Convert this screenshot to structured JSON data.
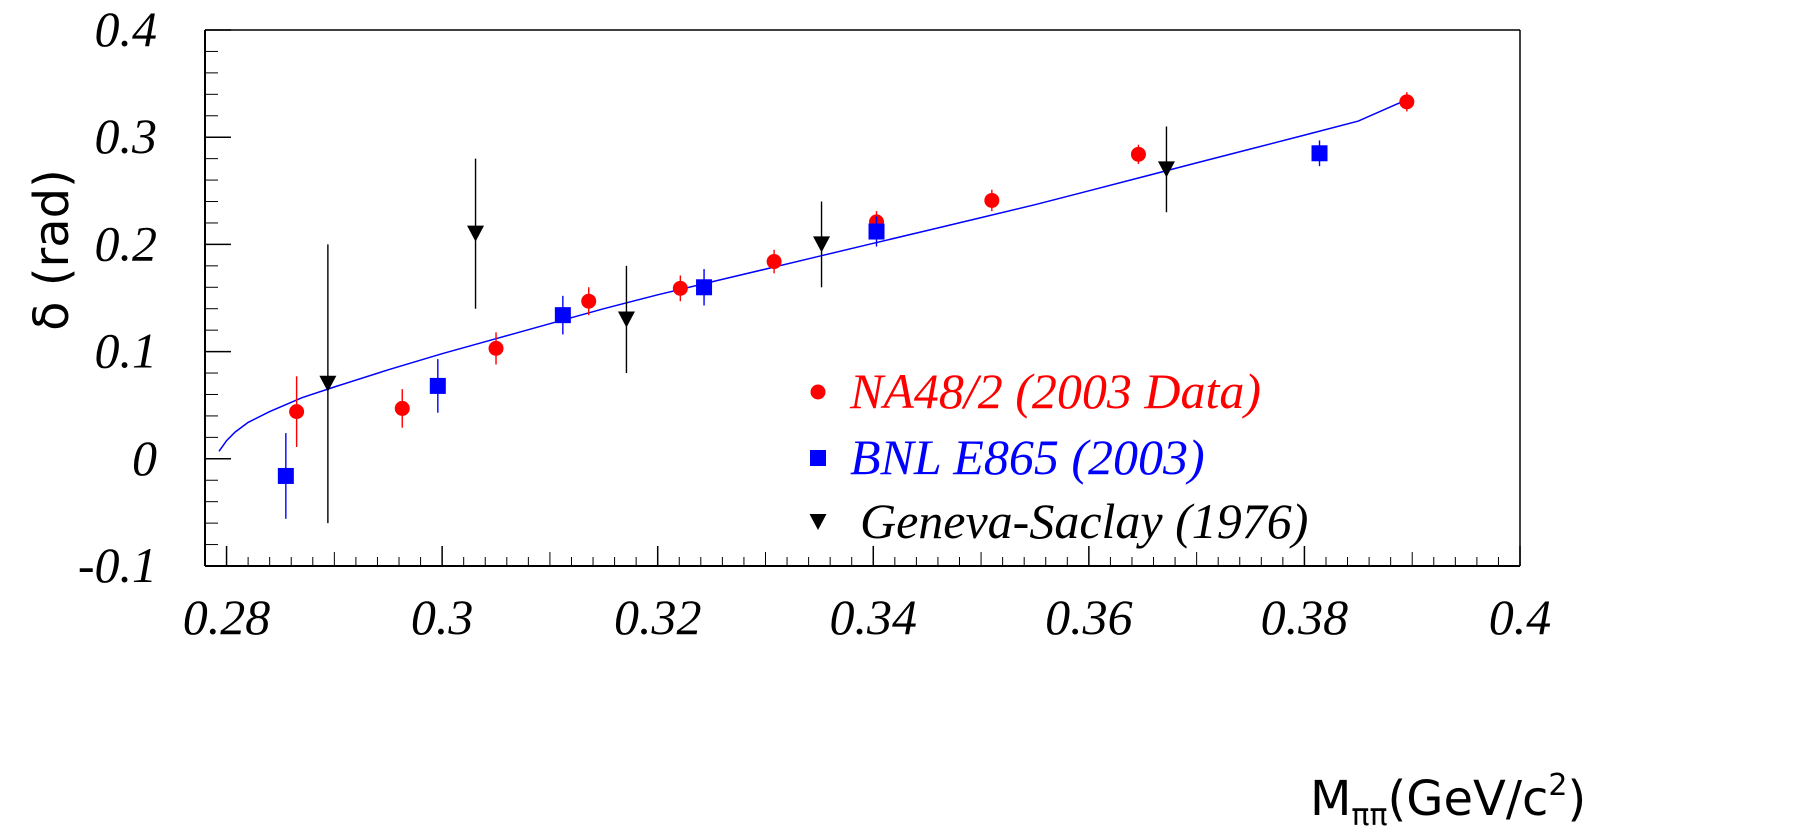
{
  "chart_data": {
    "type": "scatter",
    "xlabel": "M",
    "xlabel_sub": "ππ",
    "xlabel_unit": "(GeV/c",
    "xlabel_unit_sup": "2",
    "xlabel_unit_close": ")",
    "ylabel": "δ (rad)",
    "xlim": [
      0.278,
      0.4
    ],
    "ylim": [
      -0.1,
      0.4
    ],
    "x_ticks": [
      0.28,
      0.3,
      0.32,
      0.34,
      0.36,
      0.38,
      0.4
    ],
    "x_tick_labels": [
      "0.28",
      "0.3",
      "0.32",
      "0.34",
      "0.36",
      "0.38",
      "0.4"
    ],
    "y_ticks": [
      -0.1,
      0,
      0.1,
      0.2,
      0.3,
      0.4
    ],
    "y_tick_labels": [
      "-0.1",
      "0",
      "0.1",
      "0.2",
      "0.3",
      "0.4"
    ],
    "grid": false,
    "legend_position": "bottom-right",
    "series": [
      {
        "name": "NA48/2 (2003 Data)",
        "color": "#ff0000",
        "marker": "circle",
        "points": [
          {
            "x": 0.2865,
            "y": 0.044,
            "err": 0.033
          },
          {
            "x": 0.2963,
            "y": 0.047,
            "err": 0.018
          },
          {
            "x": 0.305,
            "y": 0.103,
            "err": 0.015
          },
          {
            "x": 0.3136,
            "y": 0.147,
            "err": 0.013
          },
          {
            "x": 0.3221,
            "y": 0.159,
            "err": 0.012
          },
          {
            "x": 0.3308,
            "y": 0.184,
            "err": 0.011
          },
          {
            "x": 0.3403,
            "y": 0.221,
            "err": 0.01
          },
          {
            "x": 0.351,
            "y": 0.241,
            "err": 0.01
          },
          {
            "x": 0.3646,
            "y": 0.284,
            "err": 0.009
          },
          {
            "x": 0.3895,
            "y": 0.333,
            "err": 0.009
          }
        ]
      },
      {
        "name": "BNL E865 (2003)",
        "color": "#0000ff",
        "marker": "square",
        "points": [
          {
            "x": 0.2855,
            "y": -0.016,
            "err": 0.04
          },
          {
            "x": 0.2996,
            "y": 0.068,
            "err": 0.025
          },
          {
            "x": 0.3112,
            "y": 0.134,
            "err": 0.018
          },
          {
            "x": 0.3243,
            "y": 0.16,
            "err": 0.017
          },
          {
            "x": 0.3403,
            "y": 0.212,
            "err": 0.014
          },
          {
            "x": 0.3814,
            "y": 0.285,
            "err": 0.012
          }
        ]
      },
      {
        "name": "Geneva-Saclay (1976)",
        "color": "#000000",
        "marker": "triangle-down",
        "points": [
          {
            "x": 0.2894,
            "y": 0.07,
            "err": 0.13
          },
          {
            "x": 0.3031,
            "y": 0.21,
            "err": 0.07
          },
          {
            "x": 0.3171,
            "y": 0.13,
            "err": 0.05
          },
          {
            "x": 0.3352,
            "y": 0.2,
            "err": 0.04
          },
          {
            "x": 0.3672,
            "y": 0.27,
            "err": 0.04
          }
        ]
      }
    ],
    "curve": {
      "color": "#0000ff",
      "x": [
        0.2793,
        0.28,
        0.2808,
        0.282,
        0.284,
        0.287,
        0.29,
        0.295,
        0.3,
        0.305,
        0.31,
        0.315,
        0.32,
        0.325,
        0.33,
        0.335,
        0.34,
        0.345,
        0.35,
        0.355,
        0.36,
        0.365,
        0.37,
        0.375,
        0.38,
        0.385,
        0.3895
      ],
      "y": [
        0.007,
        0.017,
        0.025,
        0.034,
        0.044,
        0.057,
        0.067,
        0.083,
        0.098,
        0.112,
        0.126,
        0.14,
        0.153,
        0.165,
        0.177,
        0.189,
        0.201,
        0.213,
        0.225,
        0.237,
        0.25,
        0.263,
        0.276,
        0.289,
        0.302,
        0.315,
        0.335
      ]
    }
  }
}
